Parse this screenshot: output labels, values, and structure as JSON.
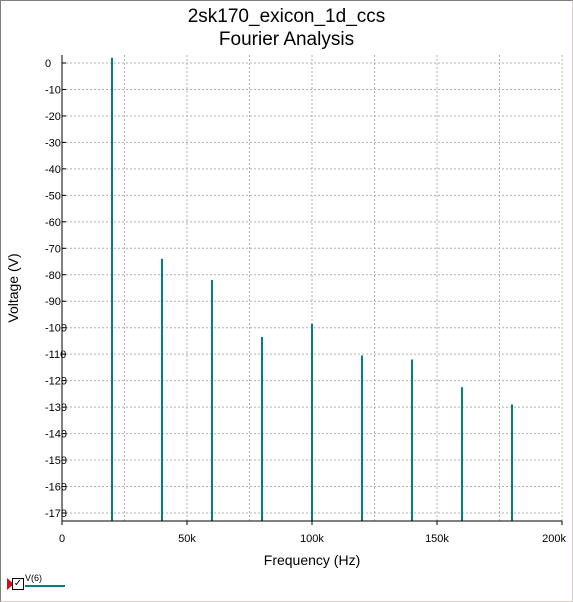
{
  "window": {
    "title_line1": "2sk170_exicon_1d_ccs",
    "title_line2": "Fourier Analysis"
  },
  "legend": {
    "label": "V(6)",
    "checked": true,
    "color": "#00807f",
    "marker_color": "#d01020"
  },
  "chart_data": {
    "type": "bar",
    "title": "2sk170_exicon_1d_ccs",
    "subtitle": "Fourier Analysis",
    "xlabel": "Frequency (Hz)",
    "ylabel": "Voltage (V)",
    "xlim": [
      0,
      200000
    ],
    "ylim": [
      -172,
      2
    ],
    "x_ticks": [
      0,
      50000,
      100000,
      150000,
      200000
    ],
    "x_tick_labels": [
      "0",
      "50k",
      "100k",
      "150k",
      "200k"
    ],
    "y_ticks": [
      0,
      -10,
      -20,
      -30,
      -40,
      -50,
      -60,
      -70,
      -80,
      -90,
      -100,
      -110,
      -120,
      -130,
      -140,
      -150,
      -160,
      -170
    ],
    "y_tick_labels": [
      "0",
      "-10",
      "-20",
      "-30",
      "-40",
      "-50",
      "-60",
      "-70",
      "-80",
      "-90",
      "-100",
      "-110",
      "-120",
      "-130",
      "-140",
      "-150",
      "-160",
      "-170"
    ],
    "grid": true,
    "bar_color": "#00807f",
    "series": [
      {
        "name": "V(6)",
        "x": [
          20000,
          40000,
          60000,
          80000,
          100000,
          120000,
          140000,
          160000,
          180000
        ],
        "values": [
          2,
          -74,
          -82,
          -103.5,
          -98.5,
          -110.5,
          -112,
          -122.5,
          -129
        ]
      }
    ]
  }
}
